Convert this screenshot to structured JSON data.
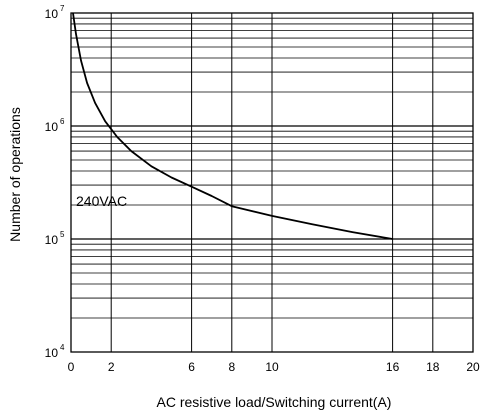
{
  "chart_data": {
    "type": "line",
    "xlabel": "AC resistive load/Switching current(A)",
    "ylabel": "Number of operations",
    "xlim": [
      0,
      20
    ],
    "ylim": [
      10000,
      10000000
    ],
    "yscale": "log",
    "grid": true,
    "x_ticks": [
      "0",
      "2",
      "6",
      "8",
      "10",
      "16",
      "18",
      "20"
    ],
    "x_tick_values": [
      0,
      2,
      6,
      8,
      10,
      16,
      18,
      20
    ],
    "y_ticks": [
      {
        "value": 10000,
        "base": "10",
        "exp": "4"
      },
      {
        "value": 100000,
        "base": "10",
        "exp": "5"
      },
      {
        "value": 1000000,
        "base": "10",
        "exp": "6"
      },
      {
        "value": 10000000,
        "base": "10",
        "exp": "7"
      }
    ],
    "annotation": "240VAC",
    "series": [
      {
        "x": [
          0.1,
          0.25,
          0.5,
          0.8,
          1.2,
          1.7,
          2.3,
          3.0,
          4.0,
          5.0,
          6.0,
          7.0,
          8.0,
          10.0,
          12.0,
          14.0,
          16.0
        ],
        "values": [
          10000000,
          6500000,
          3800000,
          2400000,
          1600000,
          1100000,
          800000,
          600000,
          440000,
          350000,
          290000,
          240000,
          195000,
          160000,
          135000,
          115000,
          100000
        ],
        "color": "#000000"
      }
    ]
  }
}
